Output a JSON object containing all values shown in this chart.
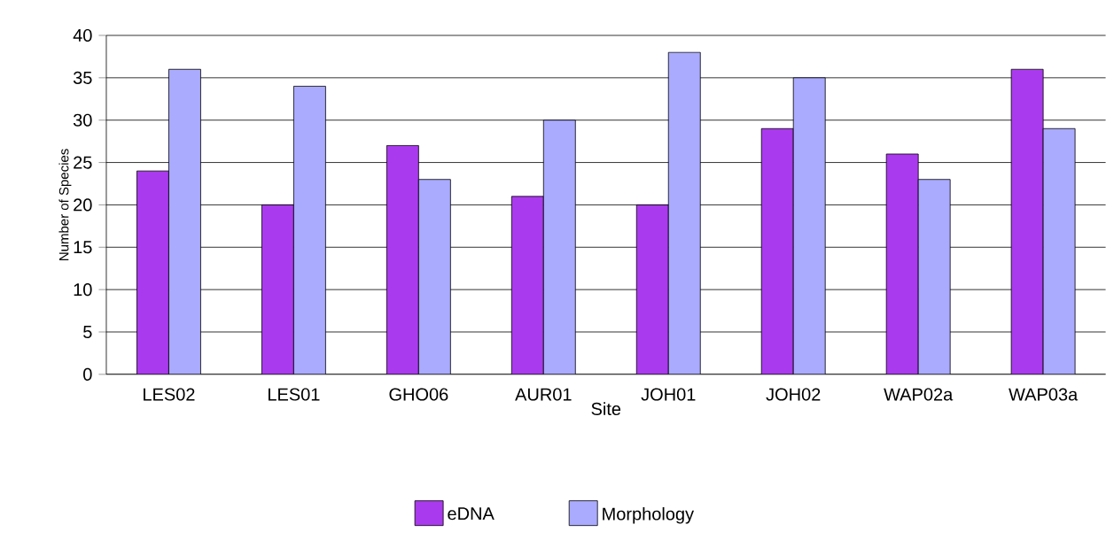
{
  "chart_data": {
    "type": "bar",
    "xlabel": "Site",
    "ylabel": "Number of Species",
    "categories": [
      "LES02",
      "LES01",
      "GHO06",
      "AUR01",
      "JOH01",
      "JOH02",
      "WAP02a",
      "WAP03a"
    ],
    "series": [
      {
        "name": "eDNA",
        "color": "#aa3aee",
        "values": [
          24,
          20,
          27,
          21,
          20,
          29,
          26,
          36
        ]
      },
      {
        "name": "Morphology",
        "color": "#aaaaff",
        "values": [
          36,
          34,
          23,
          30,
          38,
          35,
          23,
          29
        ]
      }
    ],
    "ylim": [
      0,
      40
    ],
    "yticks": [
      0,
      5,
      10,
      15,
      20,
      25,
      30,
      35,
      40
    ],
    "grid": "y",
    "legend": "bottom"
  }
}
